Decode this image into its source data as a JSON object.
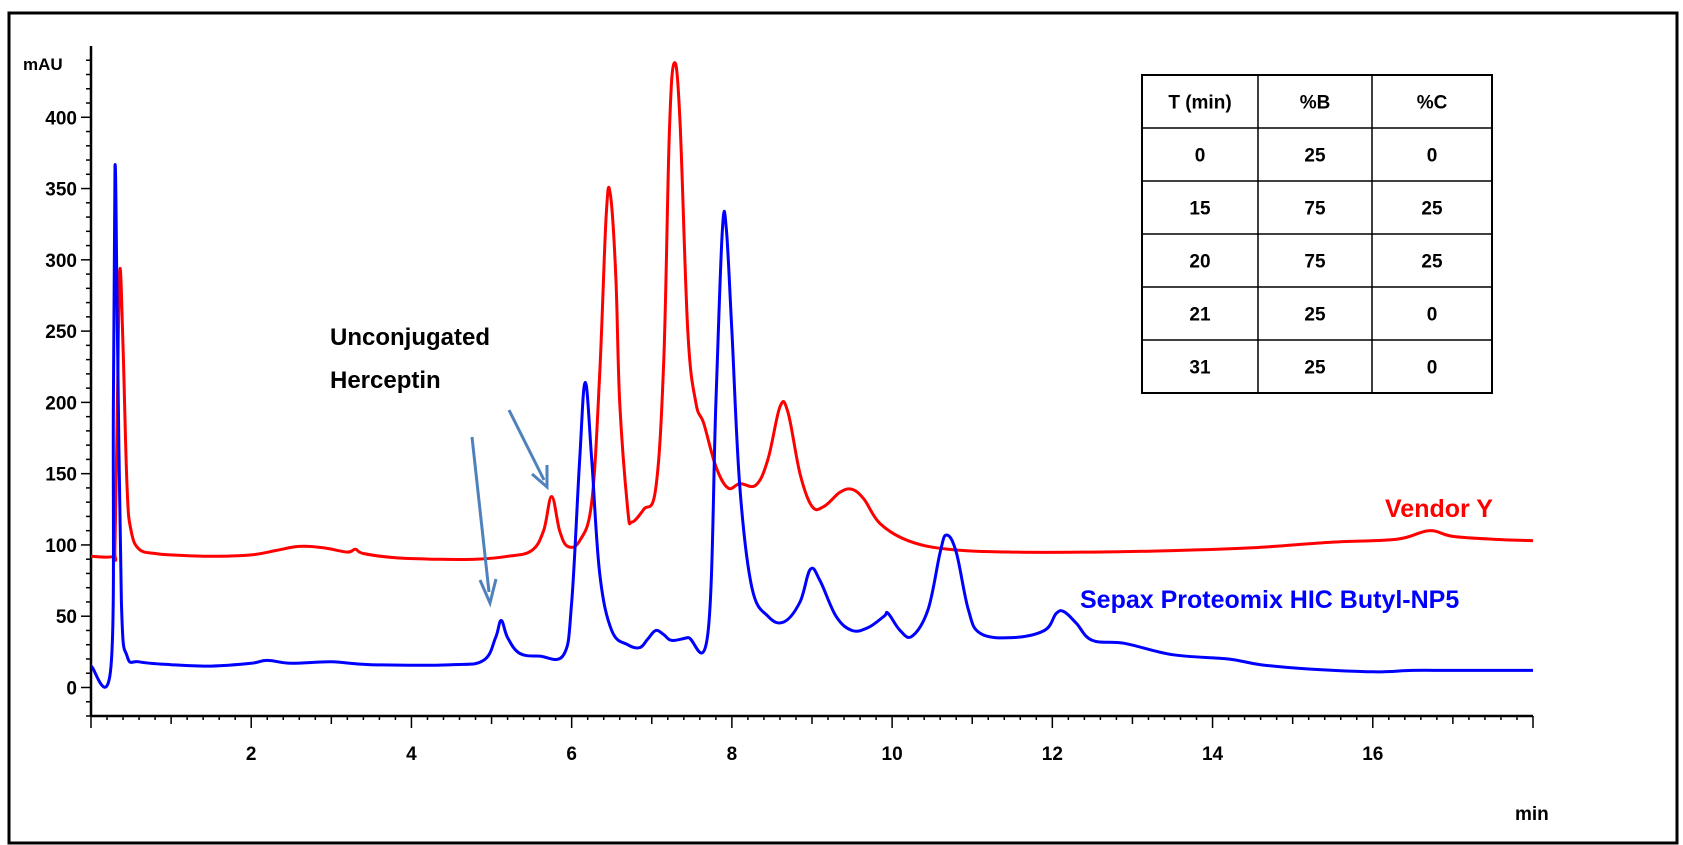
{
  "chart_data": {
    "type": "line",
    "xlabel": "min",
    "ylabel": "mAU",
    "xlim": [
      0,
      18
    ],
    "ylim": [
      -20,
      450
    ],
    "x_ticks": [
      2,
      4,
      6,
      8,
      10,
      12,
      14,
      16
    ],
    "y_ticks": [
      0,
      50,
      100,
      150,
      200,
      250,
      300,
      350,
      400
    ],
    "grid": false,
    "series": [
      {
        "name": "Vendor Y",
        "color": "#ff0000",
        "points": [
          [
            0,
            92
          ],
          [
            0.28,
            92
          ],
          [
            0.3,
            100
          ],
          [
            0.33,
            200
          ],
          [
            0.36,
            293
          ],
          [
            0.4,
            240
          ],
          [
            0.45,
            140
          ],
          [
            0.5,
            110
          ],
          [
            0.6,
            97
          ],
          [
            0.8,
            94
          ],
          [
            1.0,
            93
          ],
          [
            1.5,
            92
          ],
          [
            2.0,
            93
          ],
          [
            2.3,
            96
          ],
          [
            2.6,
            99
          ],
          [
            2.9,
            98
          ],
          [
            3.2,
            95
          ],
          [
            3.3,
            97
          ],
          [
            3.4,
            94
          ],
          [
            3.8,
            91
          ],
          [
            4.3,
            90
          ],
          [
            4.8,
            90
          ],
          [
            5.2,
            92
          ],
          [
            5.5,
            96
          ],
          [
            5.65,
            110
          ],
          [
            5.75,
            134
          ],
          [
            5.85,
            110
          ],
          [
            5.95,
            99
          ],
          [
            6.1,
            103
          ],
          [
            6.25,
            130
          ],
          [
            6.35,
            220
          ],
          [
            6.43,
            330
          ],
          [
            6.48,
            347
          ],
          [
            6.55,
            290
          ],
          [
            6.6,
            200
          ],
          [
            6.7,
            125
          ],
          [
            6.75,
            116
          ],
          [
            6.9,
            125
          ],
          [
            7.05,
            140
          ],
          [
            7.15,
            230
          ],
          [
            7.22,
            390
          ],
          [
            7.28,
            438
          ],
          [
            7.35,
            400
          ],
          [
            7.45,
            250
          ],
          [
            7.55,
            200
          ],
          [
            7.65,
            185
          ],
          [
            7.8,
            155
          ],
          [
            7.95,
            140
          ],
          [
            8.1,
            143
          ],
          [
            8.3,
            142
          ],
          [
            8.45,
            160
          ],
          [
            8.6,
            197
          ],
          [
            8.7,
            193
          ],
          [
            8.85,
            150
          ],
          [
            9.0,
            127
          ],
          [
            9.15,
            127
          ],
          [
            9.35,
            137
          ],
          [
            9.5,
            139
          ],
          [
            9.65,
            132
          ],
          [
            9.85,
            115
          ],
          [
            10.2,
            103
          ],
          [
            10.7,
            97
          ],
          [
            11.5,
            95
          ],
          [
            12.5,
            95
          ],
          [
            13.5,
            96
          ],
          [
            14.5,
            98
          ],
          [
            15.5,
            102
          ],
          [
            16.3,
            104
          ],
          [
            16.7,
            110
          ],
          [
            17.0,
            106
          ],
          [
            17.5,
            104
          ],
          [
            18.0,
            103
          ]
        ]
      },
      {
        "name": "Sepax Proteomix HIC Butyl-NP5",
        "color": "#0000ff",
        "points": [
          [
            0,
            15
          ],
          [
            0.25,
            15
          ],
          [
            0.28,
            200
          ],
          [
            0.3,
            366
          ],
          [
            0.33,
            250
          ],
          [
            0.38,
            60
          ],
          [
            0.45,
            22
          ],
          [
            0.6,
            18
          ],
          [
            1.0,
            16
          ],
          [
            1.5,
            15
          ],
          [
            2.0,
            17
          ],
          [
            2.2,
            19
          ],
          [
            2.5,
            17
          ],
          [
            3.0,
            18
          ],
          [
            3.5,
            16
          ],
          [
            4.5,
            16
          ],
          [
            4.9,
            19
          ],
          [
            5.05,
            35
          ],
          [
            5.12,
            47
          ],
          [
            5.2,
            35
          ],
          [
            5.35,
            24
          ],
          [
            5.6,
            22
          ],
          [
            5.9,
            23
          ],
          [
            6.0,
            60
          ],
          [
            6.1,
            160
          ],
          [
            6.17,
            214
          ],
          [
            6.25,
            160
          ],
          [
            6.35,
            80
          ],
          [
            6.5,
            40
          ],
          [
            6.7,
            30
          ],
          [
            6.85,
            28
          ],
          [
            6.95,
            34
          ],
          [
            7.05,
            40
          ],
          [
            7.15,
            37
          ],
          [
            7.25,
            33
          ],
          [
            7.45,
            35
          ],
          [
            7.7,
            38
          ],
          [
            7.8,
            200
          ],
          [
            7.88,
            320
          ],
          [
            7.93,
            322
          ],
          [
            8.0,
            250
          ],
          [
            8.1,
            140
          ],
          [
            8.25,
            70
          ],
          [
            8.45,
            50
          ],
          [
            8.65,
            46
          ],
          [
            8.85,
            60
          ],
          [
            8.98,
            83
          ],
          [
            9.1,
            75
          ],
          [
            9.3,
            50
          ],
          [
            9.5,
            40
          ],
          [
            9.7,
            42
          ],
          [
            9.9,
            50
          ],
          [
            9.95,
            52
          ],
          [
            10.1,
            40
          ],
          [
            10.25,
            36
          ],
          [
            10.45,
            55
          ],
          [
            10.6,
            95
          ],
          [
            10.68,
            107
          ],
          [
            10.8,
            95
          ],
          [
            10.95,
            55
          ],
          [
            11.1,
            38
          ],
          [
            11.5,
            35
          ],
          [
            11.9,
            40
          ],
          [
            12.05,
            52
          ],
          [
            12.15,
            53
          ],
          [
            12.3,
            45
          ],
          [
            12.5,
            33
          ],
          [
            12.9,
            31
          ],
          [
            13.5,
            23
          ],
          [
            14.2,
            20
          ],
          [
            14.6,
            16
          ],
          [
            15.2,
            13
          ],
          [
            16.0,
            11
          ],
          [
            16.5,
            12
          ],
          [
            17.0,
            12
          ],
          [
            18.0,
            12
          ]
        ]
      }
    ],
    "legend_labels": [
      {
        "text": "Vendor Y",
        "color": "#ff0000"
      },
      {
        "text": "Sepax Proteomix HIC Butyl-NP5",
        "color": "#0000ff"
      }
    ],
    "annotations": [
      {
        "text_lines": [
          "Unconjugated",
          "Herceptin"
        ]
      }
    ],
    "gradient_table": {
      "headers": [
        "T (min)",
        "%B",
        "%C"
      ],
      "rows": [
        [
          "0",
          "25",
          "0"
        ],
        [
          "15",
          "75",
          "25"
        ],
        [
          "20",
          "75",
          "25"
        ],
        [
          "21",
          "25",
          "0"
        ],
        [
          "31",
          "25",
          "0"
        ]
      ]
    }
  }
}
